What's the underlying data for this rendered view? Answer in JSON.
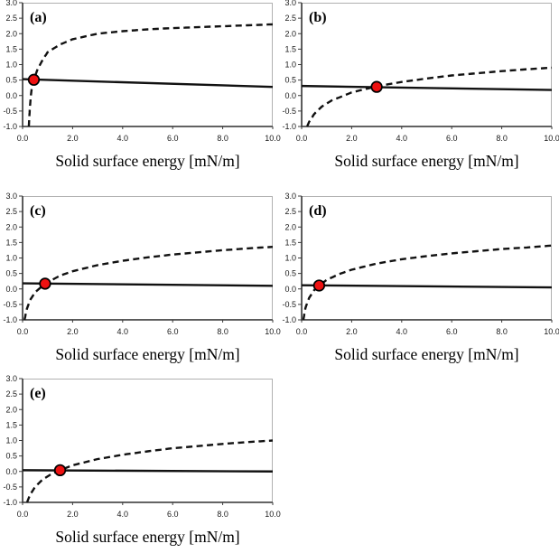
{
  "figure": {
    "description": "Five subplots (a)-(e): dashed logarithmic-shaped curve and nearly horizontal solid line intersecting at a red marker",
    "xlabel": "Solid surface energy [mN/m]"
  },
  "colors": {
    "background": "#ffffff",
    "line": "#111111",
    "axis": "#3c3c3c",
    "frame": "#b0b0b0",
    "marker_fill": "#ee1111",
    "marker_stroke": "#000000",
    "text": "#111111"
  },
  "chart_data": [
    {
      "id": "a",
      "label": "(a)",
      "type": "line",
      "xlabel": "Solid surface energy [mN/m]",
      "xlim": [
        0.0,
        10.0
      ],
      "ylim": [
        -1.0,
        3.0
      ],
      "grid": false,
      "x_ticks": [
        0.0,
        2.0,
        4.0,
        6.0,
        8.0,
        10.0
      ],
      "y_ticks": [
        3.0,
        2.5,
        2.0,
        1.5,
        1.0,
        0.5,
        0.0,
        -0.5,
        -1.0
      ],
      "x_tick_labels": [
        "0.0",
        "2.0",
        "4.0",
        "6.0",
        "8.0",
        "10.0"
      ],
      "y_tick_labels": [
        "3.0",
        "2.5",
        "2.0",
        "1.5",
        "1.0",
        "0.5",
        "0.0",
        "-0.5",
        "-1.0"
      ],
      "series": [
        {
          "name": "dashed-curve",
          "style": "dashed",
          "shape": "steep rise then flattening",
          "sample_points": [
            [
              0.25,
              -1.0
            ],
            [
              0.28,
              -0.55
            ],
            [
              0.32,
              -0.1
            ],
            [
              0.36,
              0.2
            ],
            [
              0.45,
              0.51
            ],
            [
              0.6,
              0.85
            ],
            [
              0.8,
              1.15
            ],
            [
              1.0,
              1.4
            ],
            [
              1.5,
              1.65
            ],
            [
              2.0,
              1.82
            ],
            [
              3.0,
              2.0
            ],
            [
              4.0,
              2.08
            ],
            [
              5.0,
              2.14
            ],
            [
              6.0,
              2.18
            ],
            [
              7.0,
              2.21
            ],
            [
              8.0,
              2.24
            ],
            [
              9.0,
              2.27
            ],
            [
              10.0,
              2.3
            ]
          ]
        },
        {
          "name": "solid-line",
          "style": "solid",
          "points": [
            [
              0.0,
              0.53
            ],
            [
              10.0,
              0.28
            ]
          ]
        }
      ],
      "marker": {
        "x": 0.45,
        "y": 0.51
      }
    },
    {
      "id": "b",
      "label": "(b)",
      "type": "line",
      "xlabel": "Solid surface energy [mN/m]",
      "xlim": [
        0.0,
        10.0
      ],
      "ylim": [
        -1.0,
        3.0
      ],
      "grid": false,
      "x_ticks": [
        0.0,
        2.0,
        4.0,
        6.0,
        8.0,
        10.0
      ],
      "y_ticks": [
        3.0,
        2.5,
        2.0,
        1.5,
        1.0,
        0.5,
        0.0,
        -0.5,
        -1.0
      ],
      "x_tick_labels": [
        "0.0",
        "2.0",
        "4.0",
        "6.0",
        "8.0",
        "10.0"
      ],
      "y_tick_labels": [
        "3.0",
        "2.5",
        "2.0",
        "1.5",
        "1.0",
        "0.5",
        "0.0",
        "-0.5",
        "-1.0"
      ],
      "series": [
        {
          "name": "dashed-curve",
          "style": "dashed",
          "shape": "steep rise then flattening",
          "sample_points": [
            [
              0.22,
              -1.0
            ],
            [
              0.3,
              -0.85
            ],
            [
              0.5,
              -0.6
            ],
            [
              0.8,
              -0.36
            ],
            [
              1.2,
              -0.16
            ],
            [
              2.0,
              0.1
            ],
            [
              3.0,
              0.3
            ],
            [
              4.0,
              0.44
            ],
            [
              5.0,
              0.55
            ],
            [
              6.0,
              0.65
            ],
            [
              7.0,
              0.72
            ],
            [
              8.0,
              0.79
            ],
            [
              9.0,
              0.85
            ],
            [
              10.0,
              0.9
            ]
          ]
        },
        {
          "name": "solid-line",
          "style": "solid",
          "points": [
            [
              0.0,
              0.31
            ],
            [
              10.0,
              0.18
            ]
          ]
        }
      ],
      "marker": {
        "x": 3.0,
        "y": 0.28
      }
    },
    {
      "id": "c",
      "label": "(c)",
      "type": "line",
      "xlabel": "Solid surface energy [mN/m]",
      "xlim": [
        0.0,
        10.0
      ],
      "ylim": [
        -1.0,
        3.0
      ],
      "grid": false,
      "x_ticks": [
        0.0,
        2.0,
        4.0,
        6.0,
        8.0,
        10.0
      ],
      "y_ticks": [
        3.0,
        2.5,
        2.0,
        1.5,
        1.0,
        0.5,
        0.0,
        -0.5,
        -1.0
      ],
      "x_tick_labels": [
        "0.0",
        "2.0",
        "4.0",
        "6.0",
        "8.0",
        "10.0"
      ],
      "y_tick_labels": [
        "3.0",
        "2.5",
        "2.0",
        "1.5",
        "1.0",
        "0.5",
        "0.0",
        "-0.5",
        "-1.0"
      ],
      "series": [
        {
          "name": "dashed-curve",
          "style": "dashed",
          "shape": "steep rise then flattening",
          "sample_points": [
            [
              0.08,
              -1.0
            ],
            [
              0.15,
              -0.7
            ],
            [
              0.3,
              -0.36
            ],
            [
              0.5,
              -0.11
            ],
            [
              0.9,
              0.17
            ],
            [
              1.5,
              0.43
            ],
            [
              2.0,
              0.57
            ],
            [
              3.0,
              0.77
            ],
            [
              4.0,
              0.91
            ],
            [
              5.0,
              1.02
            ],
            [
              6.0,
              1.11
            ],
            [
              7.0,
              1.18
            ],
            [
              8.0,
              1.25
            ],
            [
              9.0,
              1.31
            ],
            [
              10.0,
              1.36
            ]
          ]
        },
        {
          "name": "solid-line",
          "style": "solid",
          "points": [
            [
              0.0,
              0.18
            ],
            [
              10.0,
              0.1
            ]
          ]
        }
      ],
      "marker": {
        "x": 0.9,
        "y": 0.17
      }
    },
    {
      "id": "d",
      "label": "(d)",
      "type": "line",
      "xlabel": "Solid surface energy [mN/m]",
      "xlim": [
        0.0,
        10.0
      ],
      "ylim": [
        -1.0,
        3.0
      ],
      "grid": false,
      "x_ticks": [
        0.0,
        2.0,
        4.0,
        6.0,
        8.0,
        10.0
      ],
      "y_ticks": [
        3.0,
        2.5,
        2.0,
        1.5,
        1.0,
        0.5,
        0.0,
        -0.5,
        -1.0
      ],
      "x_tick_labels": [
        "0.0",
        "2.0",
        "4.0",
        "6.0",
        "8.0",
        "10.0"
      ],
      "y_tick_labels": [
        "3.0",
        "2.5",
        "2.0",
        "1.5",
        "1.0",
        "0.5",
        "0.0",
        "-0.5",
        "-1.0"
      ],
      "series": [
        {
          "name": "dashed-curve",
          "style": "dashed",
          "shape": "steep rise then flattening",
          "sample_points": [
            [
              0.07,
              -1.0
            ],
            [
              0.15,
              -0.62
            ],
            [
              0.3,
              -0.29
            ],
            [
              0.5,
              -0.04
            ],
            [
              0.7,
              0.11
            ],
            [
              1.0,
              0.29
            ],
            [
              1.5,
              0.48
            ],
            [
              2.0,
              0.62
            ],
            [
              3.0,
              0.82
            ],
            [
              4.0,
              0.96
            ],
            [
              5.0,
              1.06
            ],
            [
              6.0,
              1.15
            ],
            [
              7.0,
              1.22
            ],
            [
              8.0,
              1.29
            ],
            [
              9.0,
              1.34
            ],
            [
              10.0,
              1.4
            ]
          ]
        },
        {
          "name": "solid-line",
          "style": "solid",
          "points": [
            [
              0.0,
              0.12
            ],
            [
              10.0,
              0.05
            ]
          ]
        }
      ],
      "marker": {
        "x": 0.7,
        "y": 0.11
      }
    },
    {
      "id": "e",
      "label": "(e)",
      "type": "line",
      "xlabel": "Solid surface energy [mN/m]",
      "xlim": [
        0.0,
        10.0
      ],
      "ylim": [
        -1.0,
        3.0
      ],
      "grid": false,
      "x_ticks": [
        0.0,
        2.0,
        4.0,
        6.0,
        8.0,
        10.0
      ],
      "y_ticks": [
        3.0,
        2.5,
        2.0,
        1.5,
        1.0,
        0.5,
        0.0,
        -0.5,
        -1.0
      ],
      "x_tick_labels": [
        "0.0",
        "2.0",
        "4.0",
        "6.0",
        "8.0",
        "10.0"
      ],
      "y_tick_labels": [
        "3.0",
        "2.5",
        "2.0",
        "1.5",
        "1.0",
        "0.5",
        "0.0",
        "-0.5",
        "-1.0"
      ],
      "series": [
        {
          "name": "dashed-curve",
          "style": "dashed",
          "shape": "steep rise then flattening",
          "sample_points": [
            [
              0.18,
              -1.0
            ],
            [
              0.3,
              -0.75
            ],
            [
              0.5,
              -0.5
            ],
            [
              0.8,
              -0.26
            ],
            [
              1.2,
              -0.06
            ],
            [
              1.5,
              0.04
            ],
            [
              2.0,
              0.2
            ],
            [
              3.0,
              0.4
            ],
            [
              4.0,
              0.54
            ],
            [
              5.0,
              0.65
            ],
            [
              6.0,
              0.75
            ],
            [
              7.0,
              0.82
            ],
            [
              8.0,
              0.89
            ],
            [
              9.0,
              0.95
            ],
            [
              10.0,
              1.0
            ]
          ]
        },
        {
          "name": "solid-line",
          "style": "solid",
          "points": [
            [
              0.0,
              0.04
            ],
            [
              10.0,
              0.0
            ]
          ]
        }
      ],
      "marker": {
        "x": 1.5,
        "y": 0.04
      }
    }
  ]
}
